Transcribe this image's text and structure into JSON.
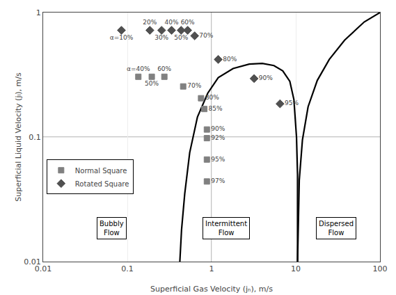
{
  "chart_data": {
    "type": "scatter",
    "xlabel": "Superficial Gas Velocity (jₙ), m/s",
    "ylabel": "Superficial Liquid Velocity (jₗ), m/s",
    "log": true,
    "xlim": [
      0.01,
      100
    ],
    "ylim": [
      0.01,
      1
    ],
    "xticks": [
      0.01,
      0.1,
      1,
      10,
      100
    ],
    "yticks": [
      0.01,
      0.1,
      1
    ],
    "grid": true,
    "legend": "lower left",
    "series": [
      {
        "name": "Normal Square",
        "type": "scatter",
        "marker": "square",
        "color": "#808080",
        "x": [
          0.135,
          0.195,
          0.275,
          0.46,
          0.75,
          0.82,
          0.88,
          0.88,
          0.88,
          0.88
        ],
        "values": [
          0.305,
          0.305,
          0.305,
          0.255,
          0.205,
          0.168,
          0.115,
          0.098,
          0.066,
          0.044
        ],
        "point_labels": [
          "α=40%",
          "50%",
          "60%",
          "70%",
          "80%",
          "85%",
          "90%",
          "92%",
          "95%",
          "97%"
        ]
      },
      {
        "name": "Rotated Square",
        "type": "scatter",
        "marker": "diamond",
        "color": "#505050",
        "x": [
          0.085,
          0.185,
          0.255,
          0.335,
          0.435,
          0.52,
          0.63,
          1.2,
          3.2,
          6.5
        ],
        "values": [
          0.72,
          0.72,
          0.72,
          0.72,
          0.72,
          0.72,
          0.65,
          0.42,
          0.295,
          0.185
        ],
        "point_labels": [
          "α=10%",
          "20%",
          "30%",
          "40%",
          "50%",
          "60%",
          "70%",
          "80%",
          "90%",
          "95%"
        ]
      }
    ],
    "curves": [
      {
        "type": "line",
        "line_style": "solid",
        "color": "#000000",
        "x": [
          0.42,
          0.44,
          0.48,
          0.55,
          0.68,
          0.9,
          1.2,
          1.8,
          2.8,
          4.0,
          5.5,
          7.0,
          8.5,
          9.5,
          10.2,
          10.5,
          10.5
        ],
        "values": [
          0.01,
          0.018,
          0.035,
          0.075,
          0.145,
          0.225,
          0.3,
          0.355,
          0.385,
          0.39,
          0.375,
          0.34,
          0.28,
          0.2,
          0.1,
          0.05,
          0.01
        ]
      },
      {
        "type": "line",
        "line_style": "solid",
        "color": "#000000",
        "x": [
          10.5,
          11.0,
          12.0,
          14.0,
          18.0,
          25.0,
          38.0,
          65.0,
          100.0
        ],
        "values": [
          0.01,
          0.045,
          0.095,
          0.175,
          0.285,
          0.42,
          0.6,
          0.84,
          1.0
        ]
      }
    ],
    "reference_lines": [
      {
        "y": 0.1,
        "color": "#888888"
      },
      {
        "x": 1.0,
        "color": "#888888"
      }
    ],
    "annotations": [
      {
        "x": 0.065,
        "y": 0.0185,
        "text": "Bubbly\nFlow"
      },
      {
        "x": 1.5,
        "y": 0.0185,
        "text": "Intermittent\nFlow"
      },
      {
        "x": 30.0,
        "y": 0.0185,
        "text": "Dispersed\nFlow"
      }
    ]
  }
}
